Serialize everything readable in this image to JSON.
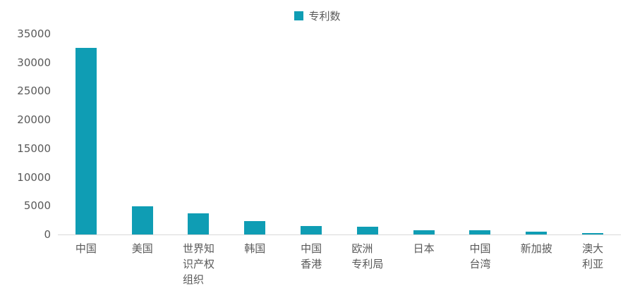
{
  "chart_data": {
    "type": "bar",
    "title": "",
    "legend": {
      "label": "专利数",
      "position": "top"
    },
    "categories": [
      "中国",
      "美国",
      "世界知识产权组织",
      "韩国",
      "中国香港",
      "欧洲专利局",
      "日本",
      "中国台湾",
      "新加披",
      "澳大利亚"
    ],
    "tick_labels": [
      "中国",
      "美国",
      "世界知\n识产权\n组织",
      "韩国",
      "中国\n香港",
      "欧洲\n专利局",
      "日本",
      "中国\n台湾",
      "新加披",
      "澳大\n利亚"
    ],
    "values": [
      32500,
      4900,
      3700,
      2300,
      1500,
      1300,
      800,
      700,
      500,
      250
    ],
    "xlabel": "",
    "ylabel": "",
    "ylim": [
      0,
      35000
    ],
    "yticks": [
      0,
      5000,
      10000,
      15000,
      20000,
      25000,
      30000,
      35000
    ],
    "grid": false,
    "bar_color": "#0f9db4",
    "axis_line_color": "#d9d9d9",
    "text_color": "#595959"
  }
}
